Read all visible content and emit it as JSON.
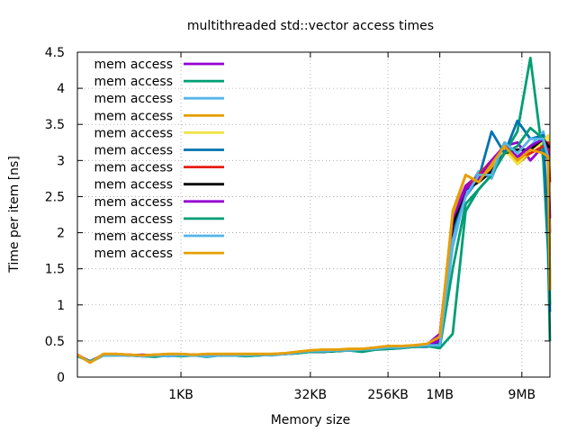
{
  "chart_data": {
    "type": "line",
    "title": "multithreaded std::vector access times",
    "xlabel": "Memory size",
    "ylabel": "Time per item [ns]",
    "x_scale": "log2",
    "x_unit": "bytes",
    "xlim": [
      64,
      20000000
    ],
    "ylim": [
      0,
      4.5
    ],
    "yticks": [
      0,
      0.5,
      1,
      1.5,
      2,
      2.5,
      3,
      3.5,
      4,
      4.5
    ],
    "ytick_labels": [
      "0",
      "0.5",
      "1",
      "1.5",
      "2",
      "2.5",
      "3",
      "3.5",
      "4",
      "4.5"
    ],
    "xticks": [
      {
        "value": 1024,
        "label": "1KB"
      },
      {
        "value": 32768,
        "label": "32KB"
      },
      {
        "value": 262144,
        "label": "256KB"
      },
      {
        "value": 1048576,
        "label": "1MB"
      },
      {
        "value": 9437184,
        "label": "9MB"
      }
    ],
    "grid": true,
    "legend_position": "top-left",
    "x": [
      64,
      90,
      128,
      181,
      256,
      362,
      512,
      724,
      1024,
      1448,
      2048,
      2896,
      4096,
      5793,
      8192,
      11585,
      16384,
      23170,
      32768,
      46341,
      65536,
      92682,
      131072,
      185364,
      262144,
      370728,
      524288,
      741455,
      1048576,
      1482910,
      2097152,
      2965821,
      4194304,
      5931642,
      8388608,
      11863283,
      16777216,
      19000000,
      20000000
    ],
    "series": [
      {
        "name": "mem access",
        "color": "#9400D3",
        "values": [
          0.3,
          0.22,
          0.31,
          0.32,
          0.3,
          0.31,
          0.3,
          0.29,
          0.3,
          0.31,
          0.3,
          0.31,
          0.31,
          0.3,
          0.31,
          0.31,
          0.32,
          0.33,
          0.36,
          0.35,
          0.37,
          0.38,
          0.37,
          0.4,
          0.41,
          0.42,
          0.43,
          0.45,
          0.6,
          2.2,
          2.65,
          2.8,
          3.0,
          3.2,
          3.25,
          3.0,
          3.2,
          3.0,
          2.0
        ]
      },
      {
        "name": "mem access",
        "color": "#009E73",
        "values": [
          0.29,
          0.22,
          0.3,
          0.31,
          0.3,
          0.29,
          0.28,
          0.3,
          0.29,
          0.3,
          0.28,
          0.3,
          0.3,
          0.29,
          0.3,
          0.31,
          0.32,
          0.33,
          0.35,
          0.35,
          0.36,
          0.37,
          0.35,
          0.38,
          0.39,
          0.4,
          0.42,
          0.43,
          0.4,
          0.6,
          2.3,
          2.6,
          2.8,
          3.1,
          3.4,
          4.42,
          3.0,
          1.75,
          0.5
        ]
      },
      {
        "name": "mem access",
        "color": "#56B4E9",
        "values": [
          0.3,
          0.21,
          0.3,
          0.3,
          0.31,
          0.29,
          0.3,
          0.29,
          0.3,
          0.3,
          0.29,
          0.3,
          0.3,
          0.3,
          0.31,
          0.3,
          0.32,
          0.34,
          0.36,
          0.36,
          0.37,
          0.37,
          0.38,
          0.39,
          0.41,
          0.41,
          0.43,
          0.44,
          0.45,
          1.8,
          2.55,
          2.85,
          2.75,
          3.2,
          3.05,
          3.2,
          3.4,
          3.1,
          1.2
        ]
      },
      {
        "name": "mem access",
        "color": "#E69F00",
        "values": [
          0.31,
          0.2,
          0.32,
          0.32,
          0.31,
          0.3,
          0.31,
          0.32,
          0.32,
          0.31,
          0.32,
          0.32,
          0.32,
          0.32,
          0.32,
          0.32,
          0.33,
          0.35,
          0.37,
          0.38,
          0.38,
          0.39,
          0.39,
          0.41,
          0.43,
          0.43,
          0.44,
          0.46,
          0.55,
          2.3,
          2.8,
          2.7,
          2.9,
          3.25,
          2.95,
          3.1,
          3.2,
          3.1,
          1.3
        ]
      },
      {
        "name": "mem access",
        "color": "#F0E442",
        "values": [
          0.3,
          0.21,
          0.31,
          0.31,
          0.3,
          0.3,
          0.3,
          0.3,
          0.31,
          0.3,
          0.31,
          0.31,
          0.31,
          0.31,
          0.31,
          0.31,
          0.32,
          0.34,
          0.36,
          0.36,
          0.37,
          0.38,
          0.37,
          0.4,
          0.41,
          0.42,
          0.43,
          0.45,
          0.55,
          2.2,
          2.6,
          2.75,
          2.95,
          3.15,
          2.95,
          3.15,
          3.25,
          3.35,
          1.8
        ]
      },
      {
        "name": "mem access",
        "color": "#0072B2",
        "values": [
          0.3,
          0.21,
          0.3,
          0.31,
          0.3,
          0.3,
          0.3,
          0.3,
          0.3,
          0.3,
          0.3,
          0.3,
          0.3,
          0.3,
          0.3,
          0.31,
          0.32,
          0.34,
          0.36,
          0.35,
          0.36,
          0.37,
          0.37,
          0.39,
          0.4,
          0.41,
          0.42,
          0.42,
          0.48,
          2.0,
          2.5,
          2.75,
          3.4,
          3.1,
          3.55,
          3.3,
          3.35,
          2.0,
          0.9
        ]
      },
      {
        "name": "mem access",
        "color": "#E51E10",
        "values": [
          0.31,
          0.21,
          0.31,
          0.31,
          0.31,
          0.3,
          0.31,
          0.3,
          0.31,
          0.31,
          0.3,
          0.31,
          0.31,
          0.31,
          0.31,
          0.31,
          0.32,
          0.34,
          0.36,
          0.36,
          0.37,
          0.38,
          0.37,
          0.4,
          0.42,
          0.42,
          0.43,
          0.45,
          0.52,
          2.1,
          2.6,
          2.8,
          3.0,
          3.2,
          3.05,
          3.1,
          3.2,
          3.25,
          2.7
        ]
      },
      {
        "name": "mem access",
        "color": "#000000",
        "values": [
          0.3,
          0.21,
          0.3,
          0.31,
          0.3,
          0.3,
          0.3,
          0.3,
          0.3,
          0.3,
          0.3,
          0.3,
          0.31,
          0.3,
          0.31,
          0.31,
          0.32,
          0.34,
          0.35,
          0.35,
          0.36,
          0.37,
          0.37,
          0.39,
          0.4,
          0.41,
          0.43,
          0.44,
          0.5,
          2.1,
          2.6,
          2.7,
          2.85,
          3.1,
          3.15,
          3.15,
          3.3,
          3.2,
          3.18
        ]
      },
      {
        "name": "mem access",
        "color": "#9400D3",
        "values": [
          0.3,
          0.22,
          0.3,
          0.31,
          0.3,
          0.3,
          0.3,
          0.3,
          0.3,
          0.3,
          0.3,
          0.3,
          0.31,
          0.3,
          0.31,
          0.31,
          0.32,
          0.34,
          0.36,
          0.35,
          0.37,
          0.38,
          0.37,
          0.4,
          0.41,
          0.42,
          0.43,
          0.45,
          0.5,
          2.2,
          2.6,
          2.75,
          3.0,
          3.2,
          3.05,
          3.2,
          3.3,
          3.1,
          2.2
        ]
      },
      {
        "name": "mem access",
        "color": "#009E73",
        "values": [
          0.29,
          0.22,
          0.3,
          0.3,
          0.3,
          0.29,
          0.29,
          0.3,
          0.29,
          0.3,
          0.29,
          0.3,
          0.3,
          0.29,
          0.3,
          0.31,
          0.32,
          0.33,
          0.35,
          0.35,
          0.36,
          0.37,
          0.35,
          0.38,
          0.39,
          0.4,
          0.42,
          0.43,
          0.41,
          1.5,
          2.4,
          2.6,
          2.8,
          3.1,
          3.2,
          3.45,
          3.3,
          3.0,
          1.0
        ]
      },
      {
        "name": "mem access",
        "color": "#56B4E9",
        "values": [
          0.3,
          0.21,
          0.3,
          0.3,
          0.3,
          0.29,
          0.3,
          0.29,
          0.3,
          0.3,
          0.29,
          0.3,
          0.3,
          0.3,
          0.31,
          0.3,
          0.32,
          0.34,
          0.36,
          0.36,
          0.37,
          0.37,
          0.38,
          0.39,
          0.41,
          0.41,
          0.43,
          0.44,
          0.44,
          1.9,
          2.5,
          2.8,
          2.8,
          3.25,
          3.1,
          3.3,
          3.3,
          3.05,
          1.4
        ]
      },
      {
        "name": "mem access",
        "color": "#E69F00",
        "values": [
          0.31,
          0.2,
          0.32,
          0.32,
          0.31,
          0.3,
          0.31,
          0.32,
          0.32,
          0.31,
          0.32,
          0.32,
          0.32,
          0.32,
          0.32,
          0.32,
          0.33,
          0.35,
          0.37,
          0.38,
          0.38,
          0.39,
          0.39,
          0.41,
          0.43,
          0.43,
          0.44,
          0.46,
          0.56,
          2.25,
          2.8,
          2.7,
          2.95,
          3.2,
          3.0,
          3.15,
          3.1,
          3.05,
          1.2
        ]
      }
    ]
  }
}
